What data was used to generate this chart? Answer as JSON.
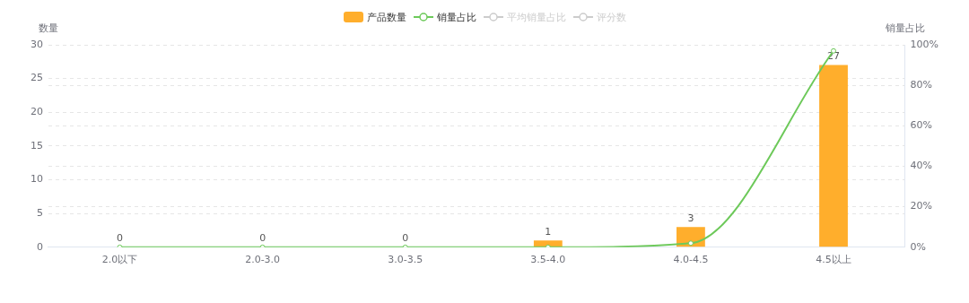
{
  "chart_data": {
    "type": "bar",
    "ylabel": "数量",
    "y2label": "销量占比",
    "categories": [
      "2.0以下",
      "2.0-3.0",
      "3.0-3.5",
      "3.5-4.0",
      "4.0-4.5",
      "4.5以上"
    ],
    "series": [
      {
        "name": "产品数量",
        "color": "#ffae2c",
        "values": [
          0,
          0,
          0,
          1,
          3,
          27
        ],
        "value_labels": [
          "0",
          "0",
          "0",
          "1",
          "3",
          "27"
        ]
      },
      {
        "name": "销量占比",
        "type": "line",
        "axis": "y2",
        "color": "#6dc95a",
        "values": [
          0,
          0,
          0,
          0,
          2,
          97
        ]
      },
      {
        "name": "平均销量占比",
        "type": "line",
        "axis": "y2",
        "color": "#cccccc",
        "values": [
          null,
          null,
          null,
          null,
          null,
          null
        ]
      },
      {
        "name": "评分数",
        "type": "line",
        "axis": "y2",
        "color": "#cccccc",
        "values": [
          null,
          null,
          null,
          null,
          null,
          null
        ]
      }
    ],
    "ylim": [
      0,
      30
    ],
    "yticks": [
      0,
      5,
      10,
      15,
      20,
      25,
      30
    ],
    "y2lim": [
      0,
      100
    ],
    "y2ticks": [
      {
        "value": 0,
        "label": "0%"
      },
      {
        "value": 20,
        "label": "20%"
      },
      {
        "value": 40,
        "label": "40%"
      },
      {
        "value": 60,
        "label": "60%"
      },
      {
        "value": 80,
        "label": "80%"
      },
      {
        "value": 100,
        "label": "100%"
      }
    ],
    "grid": "y",
    "legend": "top",
    "marker": "circle",
    "line_style": "solid"
  }
}
